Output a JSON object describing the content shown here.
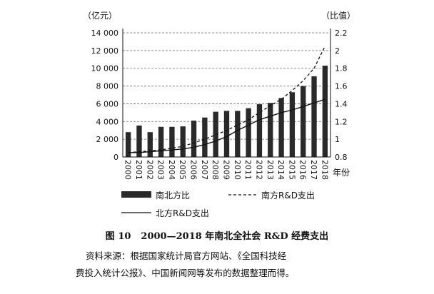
{
  "chart_data": {
    "type": "bar",
    "years": [
      "2000",
      "2001",
      "2002",
      "2003",
      "2004",
      "2005",
      "2006",
      "2007",
      "2008",
      "2009",
      "2010",
      "2011",
      "2012",
      "2013",
      "2014",
      "2015",
      "2016",
      "2017",
      "2018"
    ],
    "bar_values": [
      2800,
      3550,
      2800,
      3400,
      3400,
      3450,
      4100,
      4450,
      5100,
      5200,
      5200,
      5500,
      5950,
      6100,
      6650,
      7300,
      8000,
      9100,
      10300
    ],
    "south_line": [
      0.85,
      0.86,
      0.87,
      0.88,
      0.9,
      0.92,
      0.96,
      1.0,
      1.05,
      1.1,
      1.16,
      1.22,
      1.3,
      1.38,
      1.45,
      1.55,
      1.66,
      1.8,
      2.05
    ],
    "north_line": [
      0.85,
      0.85,
      0.86,
      0.87,
      0.88,
      0.89,
      0.91,
      0.94,
      0.98,
      1.03,
      1.1,
      1.16,
      1.22,
      1.26,
      1.3,
      1.33,
      1.37,
      1.41,
      1.45
    ],
    "y_left": {
      "unit": "（亿元）",
      "min": 0,
      "max": 14000,
      "ticks": [
        0,
        2000,
        4000,
        6000,
        8000,
        10000,
        12000,
        14000
      ],
      "tick_labels": [
        "0",
        "2 000",
        "4 000",
        "6 000",
        "8 000",
        "10 000",
        "12 000",
        "14 000"
      ]
    },
    "y_right": {
      "unit": "（比值）",
      "min": 0.8,
      "max": 2.2,
      "ticks": [
        0.8,
        1.0,
        1.2,
        1.4,
        1.6,
        1.8,
        2.0,
        2.2
      ],
      "tick_labels": [
        "0.8",
        "1",
        "1.2",
        "1.4",
        "1.6",
        "1.8",
        "2",
        "2.2"
      ]
    },
    "x_unit": "年份",
    "legend": {
      "bar": "南北方比",
      "south": "南方R&D支出",
      "north": "北方R&D支出"
    },
    "colors": {
      "bar": "#2a2a2a",
      "line": "#111111",
      "grid": "#6f6f6f"
    }
  },
  "caption": {
    "fig_num": "图 10",
    "title": "2000—2018 年南北全社会 R&D 经费支出",
    "source_line1": "资料来源：根据国家统计局官方网站、《全国科技经",
    "source_line2": "费投入统计公报》、中国新闻网等发布的数据整理而得。"
  }
}
